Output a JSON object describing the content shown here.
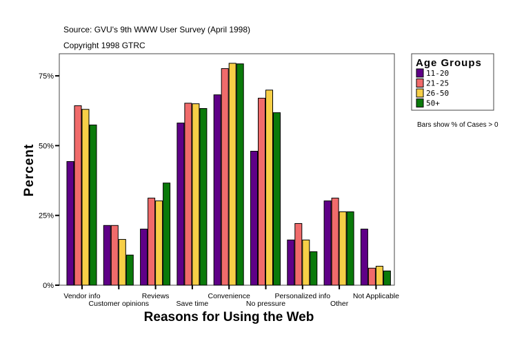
{
  "chart_data": {
    "type": "bar",
    "source": "Source: GVU's 9th WWW User Survey (April 1998)",
    "copyright": "Copyright 1998 GTRC",
    "xlabel": "Reasons for Using the Web",
    "ylabel": "Percent",
    "ylim": [
      0,
      83
    ],
    "yticks": [
      0,
      25,
      50,
      75
    ],
    "ytick_labels": [
      "0%",
      "25%",
      "50%",
      "75%"
    ],
    "legend_title": "Age Groups",
    "legend_position": "top-right",
    "note": "Bars show % of Cases > 0",
    "grid": false,
    "categories": [
      "Vendor info",
      "Customer opinions",
      "Reviews",
      "Save time",
      "Convenience",
      "No pressure",
      "Personalized info",
      "Other",
      "Not Applicable"
    ],
    "series": [
      {
        "name": "11-20",
        "color": "#5f0087",
        "values": [
          44.3,
          21.4,
          20.1,
          58.1,
          68.2,
          48.0,
          16.2,
          30.2,
          20.1
        ]
      },
      {
        "name": "21-25",
        "color": "#f06b6b",
        "values": [
          64.3,
          21.4,
          31.2,
          65.2,
          77.6,
          67.0,
          22.1,
          31.2,
          6.1
        ]
      },
      {
        "name": "26-50",
        "color": "#f7cf47",
        "values": [
          63.0,
          16.4,
          30.2,
          65.0,
          79.5,
          69.9,
          16.2,
          26.3,
          6.8
        ]
      },
      {
        "name": "50+",
        "color": "#0a7a0a",
        "values": [
          57.4,
          10.8,
          36.6,
          63.3,
          79.3,
          61.8,
          12.0,
          26.3,
          5.1
        ]
      }
    ]
  }
}
